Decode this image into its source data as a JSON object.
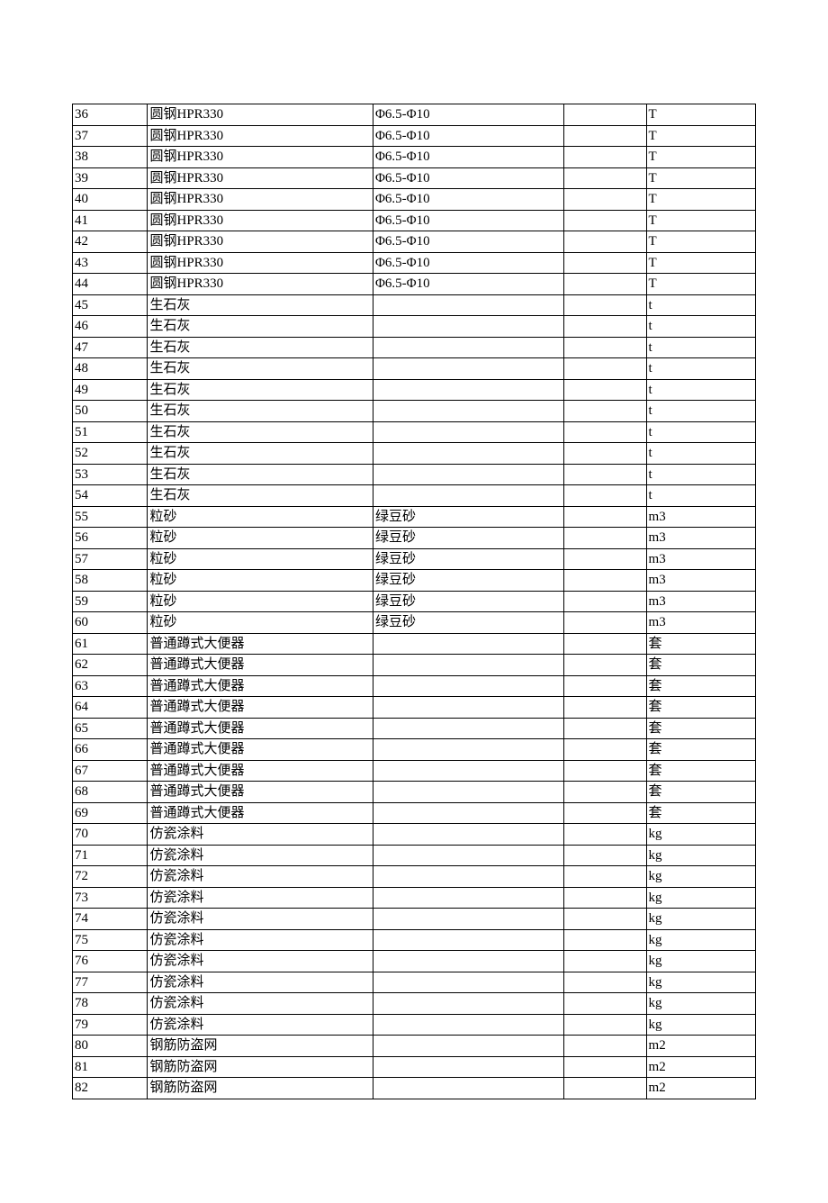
{
  "table": {
    "column_widths": {
      "num": "11%",
      "name": "33%",
      "spec": "28%",
      "blank": "12%",
      "unit": "16%"
    },
    "font_size": 15,
    "line_height": 22.5,
    "border_color": "#000000",
    "text_color": "#000000",
    "rows": [
      {
        "num": "36",
        "name": "圆钢HPR330",
        "spec": "Φ6.5-Φ10",
        "blank": "",
        "unit": "T"
      },
      {
        "num": "37",
        "name": "圆钢HPR330",
        "spec": "Φ6.5-Φ10",
        "blank": "",
        "unit": "T"
      },
      {
        "num": "38",
        "name": "圆钢HPR330",
        "spec": "Φ6.5-Φ10",
        "blank": "",
        "unit": "T"
      },
      {
        "num": "39",
        "name": "圆钢HPR330",
        "spec": "Φ6.5-Φ10",
        "blank": "",
        "unit": "T"
      },
      {
        "num": "40",
        "name": "圆钢HPR330",
        "spec": "Φ6.5-Φ10",
        "blank": "",
        "unit": "T"
      },
      {
        "num": "41",
        "name": "圆钢HPR330",
        "spec": "Φ6.5-Φ10",
        "blank": "",
        "unit": "T"
      },
      {
        "num": "42",
        "name": "圆钢HPR330",
        "spec": "Φ6.5-Φ10",
        "blank": "",
        "unit": "T"
      },
      {
        "num": "43",
        "name": "圆钢HPR330",
        "spec": "Φ6.5-Φ10",
        "blank": "",
        "unit": "T"
      },
      {
        "num": "44",
        "name": "圆钢HPR330",
        "spec": "Φ6.5-Φ10",
        "blank": "",
        "unit": "T"
      },
      {
        "num": "45",
        "name": "生石灰",
        "spec": "",
        "blank": "",
        "unit": "t"
      },
      {
        "num": "46",
        "name": "生石灰",
        "spec": "",
        "blank": "",
        "unit": "t"
      },
      {
        "num": "47",
        "name": "生石灰",
        "spec": "",
        "blank": "",
        "unit": "t"
      },
      {
        "num": "48",
        "name": "生石灰",
        "spec": "",
        "blank": "",
        "unit": "t"
      },
      {
        "num": "49",
        "name": "生石灰",
        "spec": "",
        "blank": "",
        "unit": "t"
      },
      {
        "num": "50",
        "name": "生石灰",
        "spec": "",
        "blank": "",
        "unit": "t"
      },
      {
        "num": "51",
        "name": "生石灰",
        "spec": "",
        "blank": "",
        "unit": "t"
      },
      {
        "num": "52",
        "name": "生石灰",
        "spec": "",
        "blank": "",
        "unit": "t"
      },
      {
        "num": "53",
        "name": "生石灰",
        "spec": "",
        "blank": "",
        "unit": "t"
      },
      {
        "num": "54",
        "name": "生石灰",
        "spec": "",
        "blank": "",
        "unit": "t"
      },
      {
        "num": "55",
        "name": "粒砂",
        "spec": "绿豆砂",
        "blank": "",
        "unit": "m3"
      },
      {
        "num": "56",
        "name": "粒砂",
        "spec": "绿豆砂",
        "blank": "",
        "unit": "m3"
      },
      {
        "num": "57",
        "name": "粒砂",
        "spec": "绿豆砂",
        "blank": "",
        "unit": "m3"
      },
      {
        "num": "58",
        "name": "粒砂",
        "spec": "绿豆砂",
        "blank": "",
        "unit": "m3"
      },
      {
        "num": "59",
        "name": "粒砂",
        "spec": "绿豆砂",
        "blank": "",
        "unit": "m3"
      },
      {
        "num": "60",
        "name": "粒砂",
        "spec": "绿豆砂",
        "blank": "",
        "unit": "m3"
      },
      {
        "num": "61",
        "name": "普通蹲式大便器",
        "spec": "",
        "blank": "",
        "unit": "套"
      },
      {
        "num": "62",
        "name": "普通蹲式大便器",
        "spec": "",
        "blank": "",
        "unit": "套"
      },
      {
        "num": "63",
        "name": "普通蹲式大便器",
        "spec": "",
        "blank": "",
        "unit": "套"
      },
      {
        "num": "64",
        "name": "普通蹲式大便器",
        "spec": "",
        "blank": "",
        "unit": "套"
      },
      {
        "num": "65",
        "name": "普通蹲式大便器",
        "spec": "",
        "blank": "",
        "unit": "套"
      },
      {
        "num": "66",
        "name": "普通蹲式大便器",
        "spec": "",
        "blank": "",
        "unit": "套"
      },
      {
        "num": "67",
        "name": "普通蹲式大便器",
        "spec": "",
        "blank": "",
        "unit": "套"
      },
      {
        "num": "68",
        "name": "普通蹲式大便器",
        "spec": "",
        "blank": "",
        "unit": "套"
      },
      {
        "num": "69",
        "name": "普通蹲式大便器",
        "spec": "",
        "blank": "",
        "unit": "套"
      },
      {
        "num": "70",
        "name": "仿瓷涂料",
        "spec": "",
        "blank": "",
        "unit": "kg"
      },
      {
        "num": "71",
        "name": "仿瓷涂料",
        "spec": "",
        "blank": "",
        "unit": "kg"
      },
      {
        "num": "72",
        "name": "仿瓷涂料",
        "spec": "",
        "blank": "",
        "unit": "kg"
      },
      {
        "num": "73",
        "name": "仿瓷涂料",
        "spec": "",
        "blank": "",
        "unit": "kg"
      },
      {
        "num": "74",
        "name": "仿瓷涂料",
        "spec": "",
        "blank": "",
        "unit": "kg"
      },
      {
        "num": "75",
        "name": "仿瓷涂料",
        "spec": "",
        "blank": "",
        "unit": "kg"
      },
      {
        "num": "76",
        "name": "仿瓷涂料",
        "spec": "",
        "blank": "",
        "unit": "kg"
      },
      {
        "num": "77",
        "name": "仿瓷涂料",
        "spec": "",
        "blank": "",
        "unit": "kg"
      },
      {
        "num": "78",
        "name": "仿瓷涂料",
        "spec": "",
        "blank": "",
        "unit": "kg"
      },
      {
        "num": "79",
        "name": "仿瓷涂料",
        "spec": "",
        "blank": "",
        "unit": "kg"
      },
      {
        "num": "80",
        "name": "钢筋防盗网",
        "spec": "",
        "blank": "",
        "unit": "m2"
      },
      {
        "num": "81",
        "name": "钢筋防盗网",
        "spec": "",
        "blank": "",
        "unit": "m2"
      },
      {
        "num": "82",
        "name": "钢筋防盗网",
        "spec": "",
        "blank": "",
        "unit": "m2"
      }
    ]
  }
}
